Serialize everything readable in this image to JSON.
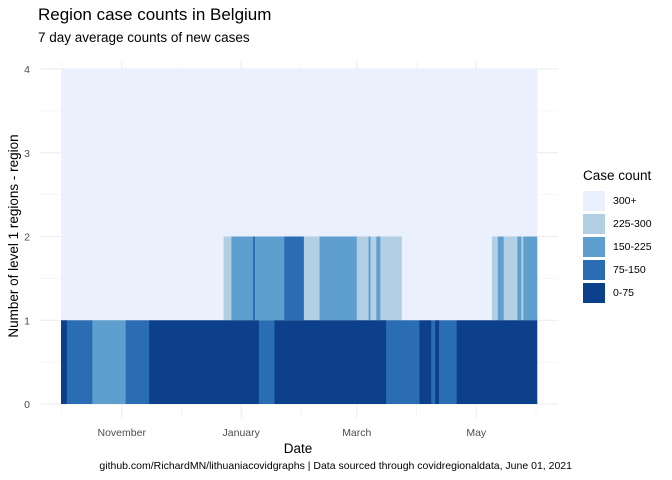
{
  "chart_data": {
    "type": "heatmap",
    "title": "Region case counts in Belgium",
    "subtitle": "7 day average counts of new cases",
    "xlabel": "Date",
    "ylabel": "Number of level 1 regions - region",
    "caption": "github.com/RichardMN/lithuaniacovidgraphs | Data sourced through covidregionaldata, June 01, 2021",
    "x_range": [
      "2020-10-01",
      "2021-06-01"
    ],
    "y_range": [
      0,
      4
    ],
    "x_ticks": [
      {
        "date": "2020-11-01",
        "label": "November"
      },
      {
        "date": "2021-01-01",
        "label": "January"
      },
      {
        "date": "2021-03-01",
        "label": "March"
      },
      {
        "date": "2021-05-01",
        "label": "May"
      }
    ],
    "y_ticks": [
      0,
      1,
      2,
      3,
      4
    ],
    "grid": true,
    "legend_position": "right",
    "legend": {
      "title": "Case count",
      "items": [
        {
          "label": "300+",
          "color": "#eaf0fc"
        },
        {
          "label": "225-300",
          "color": "#b2cfe4"
        },
        {
          "label": "150-225",
          "color": "#5e9fcf"
        },
        {
          "label": "75-150",
          "color": "#2a6db2"
        },
        {
          "label": "0-75",
          "color": "#0c408a"
        }
      ]
    },
    "layers": [
      {
        "y": [
          2,
          4
        ],
        "segments": [
          {
            "start": "2020-10-01",
            "end": "2021-06-01",
            "category": "300+"
          }
        ]
      },
      {
        "y": [
          1,
          2
        ],
        "segments": [
          {
            "start": "2020-10-01",
            "end": "2020-12-23",
            "category": "300+"
          },
          {
            "start": "2020-12-23",
            "end": "2020-12-27",
            "category": "225-300"
          },
          {
            "start": "2020-12-27",
            "end": "2021-01-07",
            "category": "150-225"
          },
          {
            "start": "2021-01-07",
            "end": "2021-01-08",
            "category": "75-150"
          },
          {
            "start": "2021-01-08",
            "end": "2021-01-23",
            "category": "150-225"
          },
          {
            "start": "2021-01-23",
            "end": "2021-02-02",
            "category": "75-150"
          },
          {
            "start": "2021-02-02",
            "end": "2021-02-03",
            "category": "225-300"
          },
          {
            "start": "2021-02-03",
            "end": "2021-02-10",
            "category": "225-300"
          },
          {
            "start": "2021-02-10",
            "end": "2021-03-01",
            "category": "150-225"
          },
          {
            "start": "2021-03-01",
            "end": "2021-03-07",
            "category": "225-300"
          },
          {
            "start": "2021-03-07",
            "end": "2021-03-08",
            "category": "150-225"
          },
          {
            "start": "2021-03-08",
            "end": "2021-03-11",
            "category": "225-300"
          },
          {
            "start": "2021-03-11",
            "end": "2021-03-13",
            "category": "150-225"
          },
          {
            "start": "2021-03-13",
            "end": "2021-03-24",
            "category": "225-300"
          },
          {
            "start": "2021-03-24",
            "end": "2021-05-09",
            "category": "300+"
          },
          {
            "start": "2021-05-09",
            "end": "2021-05-12",
            "category": "225-300"
          },
          {
            "start": "2021-05-12",
            "end": "2021-05-15",
            "category": "150-225"
          },
          {
            "start": "2021-05-15",
            "end": "2021-05-22",
            "category": "225-300"
          },
          {
            "start": "2021-05-22",
            "end": "2021-05-24",
            "category": "150-225"
          },
          {
            "start": "2021-05-24",
            "end": "2021-05-25",
            "category": "225-300"
          },
          {
            "start": "2021-05-25",
            "end": "2021-06-01",
            "category": "150-225"
          }
        ]
      },
      {
        "y": [
          0,
          1
        ],
        "segments": [
          {
            "start": "2020-10-01",
            "end": "2020-10-04",
            "category": "0-75"
          },
          {
            "start": "2020-10-04",
            "end": "2020-10-17",
            "category": "75-150"
          },
          {
            "start": "2020-10-17",
            "end": "2020-11-03",
            "category": "150-225"
          },
          {
            "start": "2020-11-03",
            "end": "2020-11-15",
            "category": "75-150"
          },
          {
            "start": "2020-11-15",
            "end": "2021-01-10",
            "category": "0-75"
          },
          {
            "start": "2021-01-10",
            "end": "2021-01-18",
            "category": "75-150"
          },
          {
            "start": "2021-01-18",
            "end": "2021-03-16",
            "category": "0-75"
          },
          {
            "start": "2021-03-16",
            "end": "2021-04-02",
            "category": "75-150"
          },
          {
            "start": "2021-04-02",
            "end": "2021-04-08",
            "category": "0-75"
          },
          {
            "start": "2021-04-08",
            "end": "2021-04-10",
            "category": "75-150"
          },
          {
            "start": "2021-04-10",
            "end": "2021-04-12",
            "category": "0-75"
          },
          {
            "start": "2021-04-12",
            "end": "2021-04-21",
            "category": "75-150"
          },
          {
            "start": "2021-04-21",
            "end": "2021-06-01",
            "category": "0-75"
          }
        ]
      }
    ]
  }
}
